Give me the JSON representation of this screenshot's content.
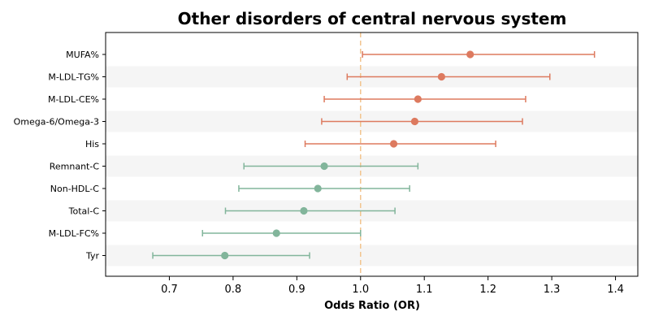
{
  "chart_data": {
    "type": "forest",
    "title": "Other disorders of central nervous system",
    "xlabel": "Odds Ratio (OR)",
    "xlim": [
      0.6,
      1.435
    ],
    "xticks": [
      0.7,
      0.8,
      0.9,
      1.0,
      1.1,
      1.2,
      1.3,
      1.4
    ],
    "xtick_labels": [
      "0.7",
      "0.8",
      "0.9",
      "1.0",
      "1.1",
      "1.2",
      "1.3",
      "1.4"
    ],
    "reference_line": 1.0,
    "colors": {
      "risk": "#dd7a5f",
      "protective": "#82b59b",
      "reference": "#f2c48e",
      "band": "#f5f5f5"
    },
    "rows": [
      {
        "label": "MUFA%",
        "or": 1.172,
        "lo": 1.003,
        "hi": 1.367,
        "group": "risk"
      },
      {
        "label": "M-LDL-TG%",
        "or": 1.127,
        "lo": 0.979,
        "hi": 1.297,
        "group": "risk"
      },
      {
        "label": "M-LDL-CE%",
        "or": 1.09,
        "lo": 0.943,
        "hi": 1.259,
        "group": "risk"
      },
      {
        "label": "Omega-6/Omega-3",
        "or": 1.085,
        "lo": 0.939,
        "hi": 1.254,
        "group": "risk"
      },
      {
        "label": "His",
        "or": 1.052,
        "lo": 0.913,
        "hi": 1.212,
        "group": "risk"
      },
      {
        "label": "Remnant-C",
        "or": 0.943,
        "lo": 0.817,
        "hi": 1.09,
        "group": "protective"
      },
      {
        "label": "Non-HDL-C",
        "or": 0.933,
        "lo": 0.809,
        "hi": 1.077,
        "group": "protective"
      },
      {
        "label": "Total-C",
        "or": 0.911,
        "lo": 0.788,
        "hi": 1.054,
        "group": "protective"
      },
      {
        "label": "M-LDL-FC%",
        "or": 0.868,
        "lo": 0.752,
        "hi": 1.0,
        "group": "protective"
      },
      {
        "label": "Tyr",
        "or": 0.787,
        "lo": 0.674,
        "hi": 0.92,
        "group": "protective"
      }
    ]
  }
}
